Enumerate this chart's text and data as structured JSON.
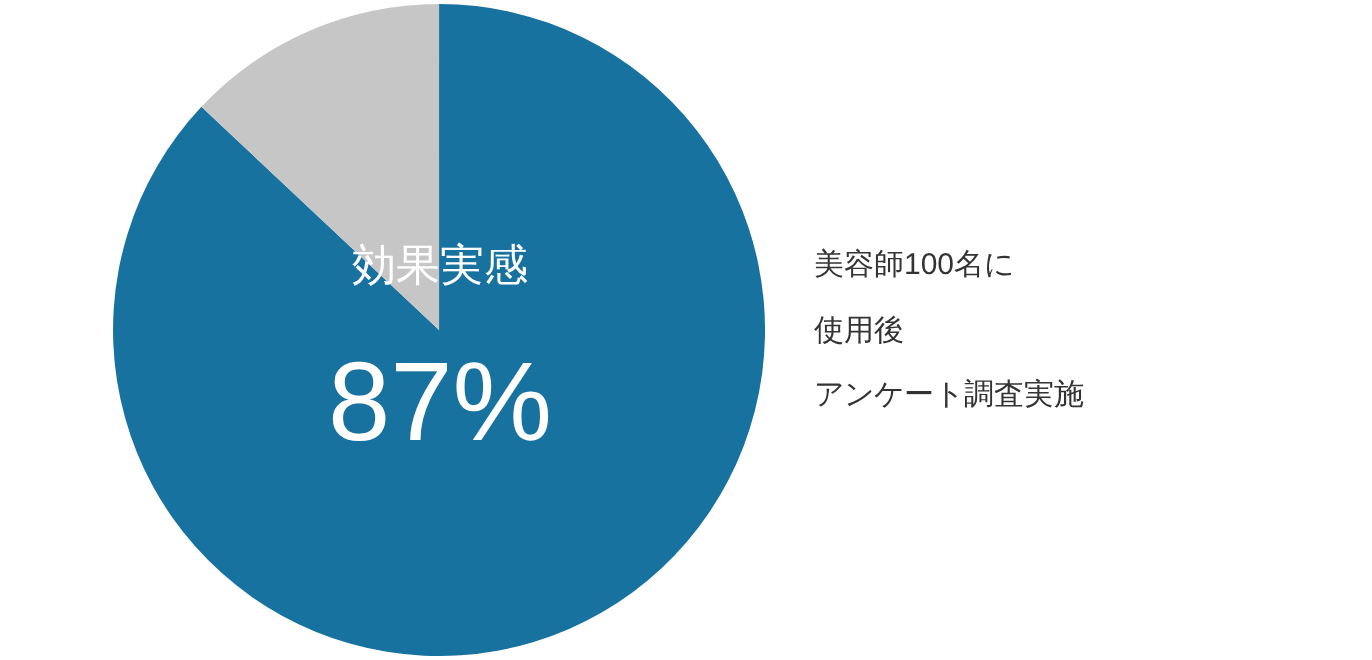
{
  "chart_data": {
    "type": "pie",
    "categories": [
      "効果実感",
      null
    ],
    "values": [
      87,
      13
    ],
    "colors": [
      "#1872a0",
      "#c6c6c6"
    ],
    "value_labels": [
      "87%",
      null
    ],
    "legend": false,
    "annotations": [
      "美容師100名に",
      "使用後",
      "アンケート調査実施"
    ]
  }
}
